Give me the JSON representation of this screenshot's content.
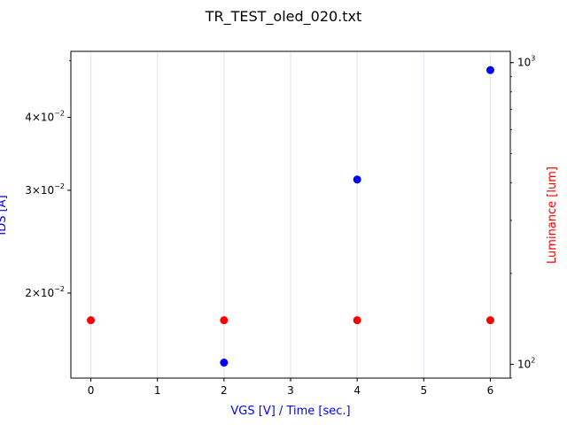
{
  "chart_data": {
    "type": "scatter",
    "title": "TR_TEST_oled_020.txt",
    "xlabel": "VGS [V] / Time [sec.]",
    "ylabel_left": "IDS [A]",
    "ylabel_right": "Luminance [lum]",
    "xlim": [
      -0.3,
      6.3
    ],
    "x_ticks": [
      0,
      1,
      2,
      3,
      4,
      5,
      6
    ],
    "x_tick_labels": [
      "0",
      "1",
      "2",
      "3",
      "4",
      "5",
      "6"
    ],
    "x_grid": true,
    "y_left": {
      "scale": "log",
      "lim": [
        0.0143,
        0.0519
      ],
      "ticks": [
        0.02,
        0.03,
        0.04
      ],
      "tick_labels": [
        {
          "mantissa": "2",
          "exp": "−2"
        },
        {
          "mantissa": "3",
          "exp": "−2"
        },
        {
          "mantissa": "4",
          "exp": "−2"
        }
      ]
    },
    "y_right": {
      "scale": "log",
      "lim": [
        90,
        1090
      ],
      "ticks": [
        100,
        1000
      ],
      "tick_labels": [
        {
          "mantissa": "",
          "exp": "2"
        },
        {
          "mantissa": "",
          "exp": "3"
        }
      ]
    },
    "colors": {
      "ids": "#0000ff",
      "luminance": "#ff0000",
      "grid": "#e6e6fa",
      "xlabel": "#0000ff",
      "ylabel_left": "#0000ff",
      "ylabel_right": "#ff0000"
    },
    "series": [
      {
        "axis": "left",
        "color": "#0000ff",
        "x": [
          2,
          4,
          6
        ],
        "y": [
          0.0152,
          0.0313,
          0.0482
        ]
      },
      {
        "axis": "right",
        "color": "#ff0000",
        "x": [
          0,
          2,
          4,
          6
        ],
        "y": [
          140,
          140,
          140,
          140
        ]
      }
    ]
  }
}
